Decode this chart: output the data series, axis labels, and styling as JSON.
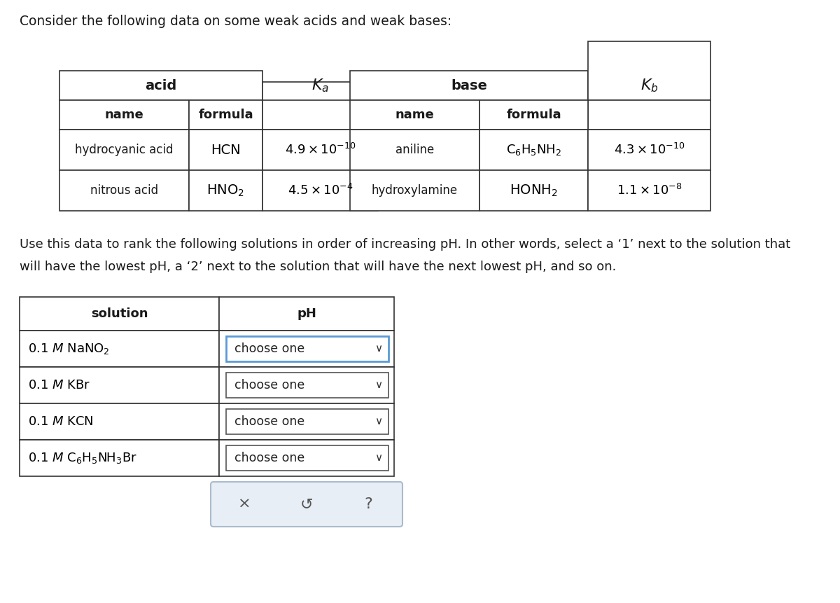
{
  "bg_color": "#ffffff",
  "text_color": "#1a1a1a",
  "title": "Consider the following data on some weak acids and weak bases:",
  "para1": "Use this data to rank the following solutions in order of increasing pH. In other words, select a ‘1’ next to the solution that",
  "para2": "will have the lowest pH, a ‘2’ next to the solution that will have the next lowest pH, and so on.",
  "acid_rows": [
    [
      "hydrocyanic acid",
      "HCN",
      "4.9 \\times 10^{-10}"
    ],
    [
      "nitrous acid",
      "HNO_2",
      "4.5 \\times 10^{-4}"
    ]
  ],
  "base_rows": [
    [
      "aniline",
      "C_6H_5NH_2",
      "4.3 \\times 10^{-10}"
    ],
    [
      "hydroxylamine",
      "HONH_2",
      "1.1 \\times 10^{-8}"
    ]
  ],
  "sol_labels": [
    "0.1 $\\mathit{M}$ NaNO$_2$",
    "0.1 $\\mathit{M}$ KBr",
    "0.1 $\\mathit{M}$ KCN",
    "0.1 $\\mathit{M}$ C$_6$H$_5$NH$_3$Br"
  ],
  "dropdown_text": "choose one",
  "btn_symbols": [
    "×",
    "↺",
    "?"
  ],
  "table_border": "#333333",
  "dropdown_border_first": "#5b9bd5",
  "dropdown_border_rest": "#555555",
  "btn_bg": "#e8eef5",
  "btn_border": "#aabbcc"
}
